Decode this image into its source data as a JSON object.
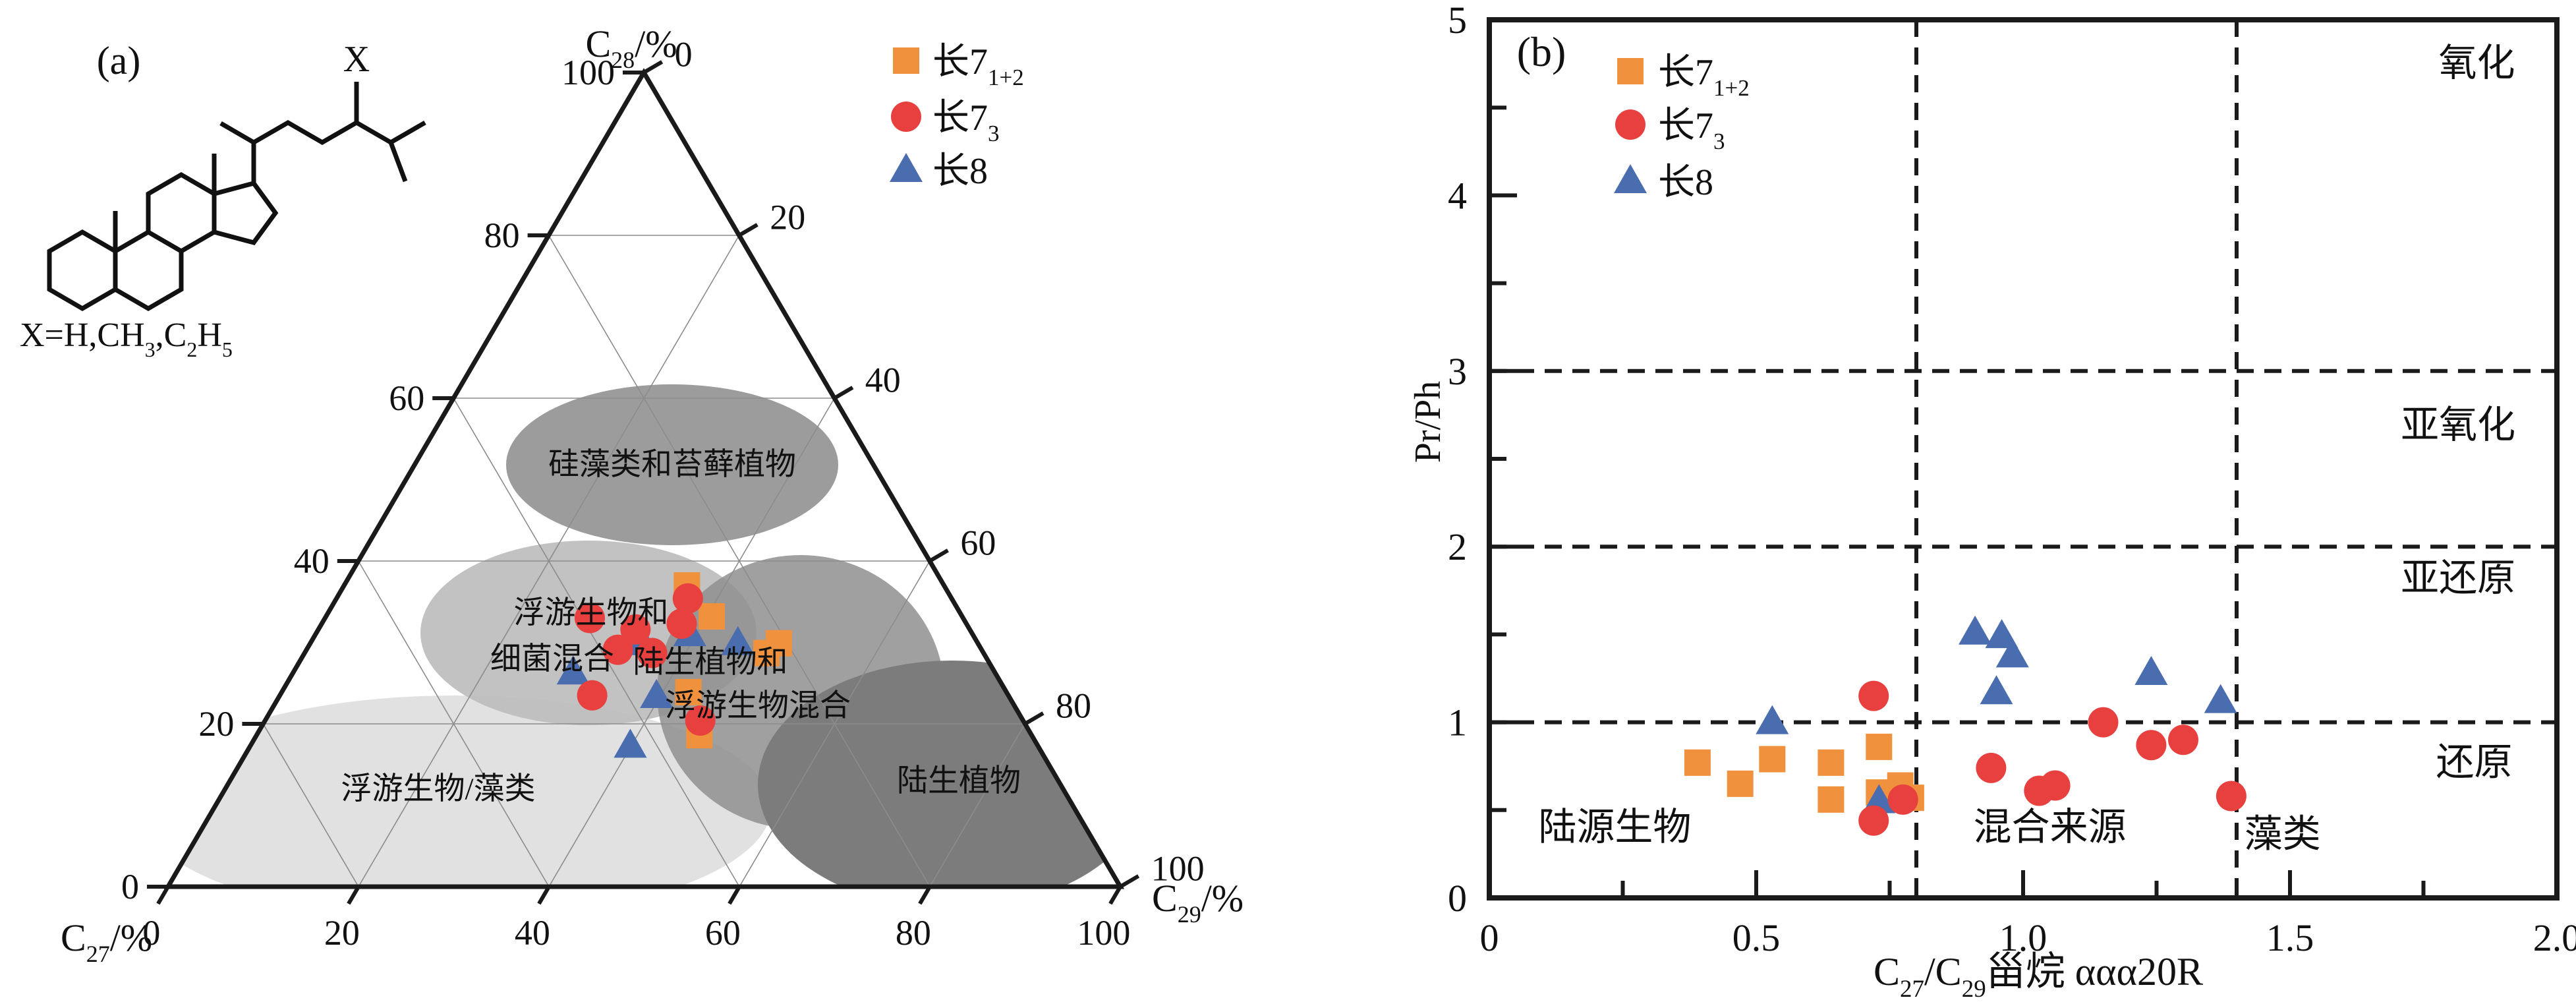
{
  "molecule": {
    "x_label": "X",
    "caption_parts": [
      {
        "t": "X=H,CH"
      },
      {
        "sub": "3"
      },
      {
        "t": ",C"
      },
      {
        "sub": "2"
      },
      {
        "t": "H"
      },
      {
        "sub": "5"
      }
    ]
  },
  "legend": {
    "items": [
      {
        "label": "长7",
        "sub": "1+2",
        "marker": "square",
        "color": "#F0923D"
      },
      {
        "label": "长7",
        "sub": "3",
        "marker": "circle",
        "color": "#E8403F"
      },
      {
        "label": "长8",
        "sub": "",
        "marker": "triangle",
        "color": "#4A6DB0"
      }
    ]
  },
  "chart_data": [
    {
      "type": "scatter-ternary",
      "id": "panel_a",
      "panel_label": "(a)",
      "axes": {
        "top_parts": [
          {
            "t": "C"
          },
          {
            "sub": "28"
          },
          {
            "t": "/%"
          }
        ],
        "bottom_left_parts": [
          {
            "t": "C"
          },
          {
            "sub": "27"
          },
          {
            "t": "/%"
          }
        ],
        "bottom_right_parts": [
          {
            "t": "C"
          },
          {
            "sub": "29"
          },
          {
            "t": "/%"
          }
        ]
      },
      "tick_step": 20,
      "left_scale_labels": [
        "0",
        "20",
        "40",
        "60",
        "80",
        "100"
      ],
      "right_scale_labels": [
        "0",
        "20",
        "40",
        "60",
        "80",
        "100"
      ],
      "bottom_scale_labels": [
        "100",
        "80",
        "60",
        "40",
        "20",
        "0"
      ],
      "grid": true,
      "regions": [
        {
          "name": "浮游生物/藻类",
          "fill": "#E1E1E1",
          "opacity": 1,
          "cx": 690,
          "cy": 1225,
          "rx": 480,
          "ry": 170,
          "label_lines": [
            {
              "text": "浮游生物/藻类",
              "x": 665,
              "y": 1212
            }
          ]
        },
        {
          "name": "浮游生物和细菌混合",
          "fill": "#BDBDBD",
          "opacity": 0.92,
          "cx": 893,
          "cy": 960,
          "rx": 255,
          "ry": 140,
          "label_lines": [
            {
              "text": "浮游生物和",
              "x": 897,
              "y": 945
            },
            {
              "text": "细菌混合",
              "x": 838,
              "y": 1015
            }
          ]
        },
        {
          "name": "硅藻类和苔藓植物",
          "fill": "#9C9C9C",
          "opacity": 1,
          "cx": 1020,
          "cy": 705,
          "rx": 252,
          "ry": 122,
          "label_lines": [
            {
              "text": "硅藻类和苔藓植物",
              "x": 1020,
              "y": 720
            }
          ]
        },
        {
          "name": "陆生植物和浮游生物混合",
          "fill": "#8F8F8F",
          "opacity": 0.85,
          "cx": 1215,
          "cy": 1050,
          "rx": 218,
          "ry": 208,
          "label_lines": [
            {
              "text": "陆生植物和",
              "x": 1078,
              "y": 1020
            },
            {
              "text": "浮游生物混合",
              "x": 1150,
              "y": 1086
            }
          ]
        },
        {
          "name": "陆生植物",
          "fill": "#7C7C7C",
          "opacity": 1,
          "cx": 1445,
          "cy": 1190,
          "rx": 295,
          "ry": 188,
          "label_lines": [
            {
              "text": "陆生植物",
              "x": 1455,
              "y": 1200
            }
          ]
        }
      ],
      "series": [
        {
          "name": "长7",
          "name_sub": "1+2",
          "marker": "square",
          "color": "#F0923D",
          "points_c27_c28_c29": [
            [
              27.0,
              37.0,
              36.0
            ],
            [
              26.3,
              33.2,
              40.5
            ],
            [
              22.8,
              28.7,
              48.5
            ],
            [
              20.9,
              29.9,
              49.2
            ],
            [
              33.4,
              23.9,
              42.7
            ],
            [
              34.9,
              18.6,
              46.5
            ]
          ]
        },
        {
          "name": "长7",
          "name_sub": "3",
          "marker": "circle",
          "color": "#E8403F",
          "points_c27_c28_c29": [
            [
              39.2,
              33.0,
              27.8
            ],
            [
              35.1,
              31.6,
              33.3
            ],
            [
              38.2,
              29.1,
              32.7
            ],
            [
              27.7,
              35.4,
              36.9
            ],
            [
              29.9,
              32.3,
              37.8
            ],
            [
              34.8,
              28.7,
              36.5
            ],
            [
              43.7,
              23.5,
              32.8
            ],
            [
              33.9,
              20.4,
              45.7
            ]
          ]
        },
        {
          "name": "长8",
          "name_sub": "",
          "marker": "triangle",
          "color": "#4A6DB0",
          "points_c27_c28_c29": [
            [
              35.2,
              29.9,
              34.9
            ],
            [
              29.7,
              31.0,
              39.3
            ],
            [
              25.2,
              29.9,
              44.9
            ],
            [
              44.3,
              26.3,
              29.4
            ],
            [
              37.0,
              23.4,
              39.6
            ],
            [
              42.8,
              17.3,
              39.9
            ]
          ]
        }
      ]
    },
    {
      "type": "scatter",
      "id": "panel_b",
      "panel_label": "(b)",
      "xlabel_parts": [
        {
          "t": "C"
        },
        {
          "sub": "27"
        },
        {
          "t": "/C"
        },
        {
          "sub": "29"
        },
        {
          "t": "甾烷 ααα20R"
        }
      ],
      "ylabel": "Pr/Ph",
      "xlim": [
        0,
        2.0
      ],
      "ylim": [
        0,
        5
      ],
      "x_major_ticks": [
        0,
        0.5,
        1.0,
        1.5,
        2.0
      ],
      "x_tick_labels": [
        "0",
        "0.5",
        "1.0",
        "1.5",
        "2.0"
      ],
      "x_minor_step": 0.25,
      "y_major_ticks": [
        0,
        1,
        2,
        3,
        4,
        5
      ],
      "y_tick_labels": [
        "0",
        "1",
        "2",
        "3",
        "4",
        "5"
      ],
      "y_minor_step": 0.5,
      "h_dashed_lines": [
        1,
        2,
        3
      ],
      "v_dashed_lines": [
        0.8,
        1.4
      ],
      "zone_labels": [
        {
          "text": "氧化",
          "x": 1.85,
          "y": 4.68,
          "anchor": "middle"
        },
        {
          "text": "亚氧化",
          "x": 1.815,
          "y": 2.62,
          "anchor": "middle"
        },
        {
          "text": "亚还原",
          "x": 1.815,
          "y": 1.75,
          "anchor": "middle"
        },
        {
          "text": "还原",
          "x": 1.845,
          "y": 0.7,
          "anchor": "middle"
        },
        {
          "text": "陆源生物",
          "x": 0.235,
          "y": 0.33,
          "anchor": "middle"
        },
        {
          "text": "混合来源",
          "x": 1.05,
          "y": 0.33,
          "anchor": "middle"
        },
        {
          "text": "藻类",
          "x": 1.486,
          "y": 0.29,
          "anchor": "middle"
        }
      ],
      "series": [
        {
          "name": "长7",
          "name_sub": "1+2",
          "marker": "square",
          "color": "#F0923D",
          "points": [
            [
              0.39,
              0.77
            ],
            [
              0.47,
              0.65
            ],
            [
              0.53,
              0.79
            ],
            [
              0.64,
              0.77
            ],
            [
              0.64,
              0.56
            ],
            [
              0.73,
              0.86
            ],
            [
              0.73,
              0.6
            ],
            [
              0.77,
              0.64
            ],
            [
              0.79,
              0.57
            ]
          ]
        },
        {
          "name": "长7",
          "name_sub": "3",
          "marker": "circle",
          "color": "#E8403F",
          "points": [
            [
              0.72,
              1.15
            ],
            [
              0.72,
              0.44
            ],
            [
              0.775,
              0.56
            ],
            [
              0.94,
              0.74
            ],
            [
              1.03,
              0.61
            ],
            [
              1.06,
              0.64
            ],
            [
              1.15,
              1.0
            ],
            [
              1.24,
              0.87
            ],
            [
              1.3,
              0.9
            ],
            [
              1.39,
              0.58
            ]
          ]
        },
        {
          "name": "长8",
          "name_sub": "",
          "marker": "triangle",
          "color": "#4A6DB0",
          "points": [
            [
              0.53,
              1.0
            ],
            [
              0.73,
              0.55
            ],
            [
              0.91,
              1.51
            ],
            [
              0.96,
              1.49
            ],
            [
              0.98,
              1.38
            ],
            [
              0.95,
              1.17
            ],
            [
              1.24,
              1.28
            ],
            [
              1.37,
              1.12
            ]
          ]
        }
      ]
    }
  ]
}
